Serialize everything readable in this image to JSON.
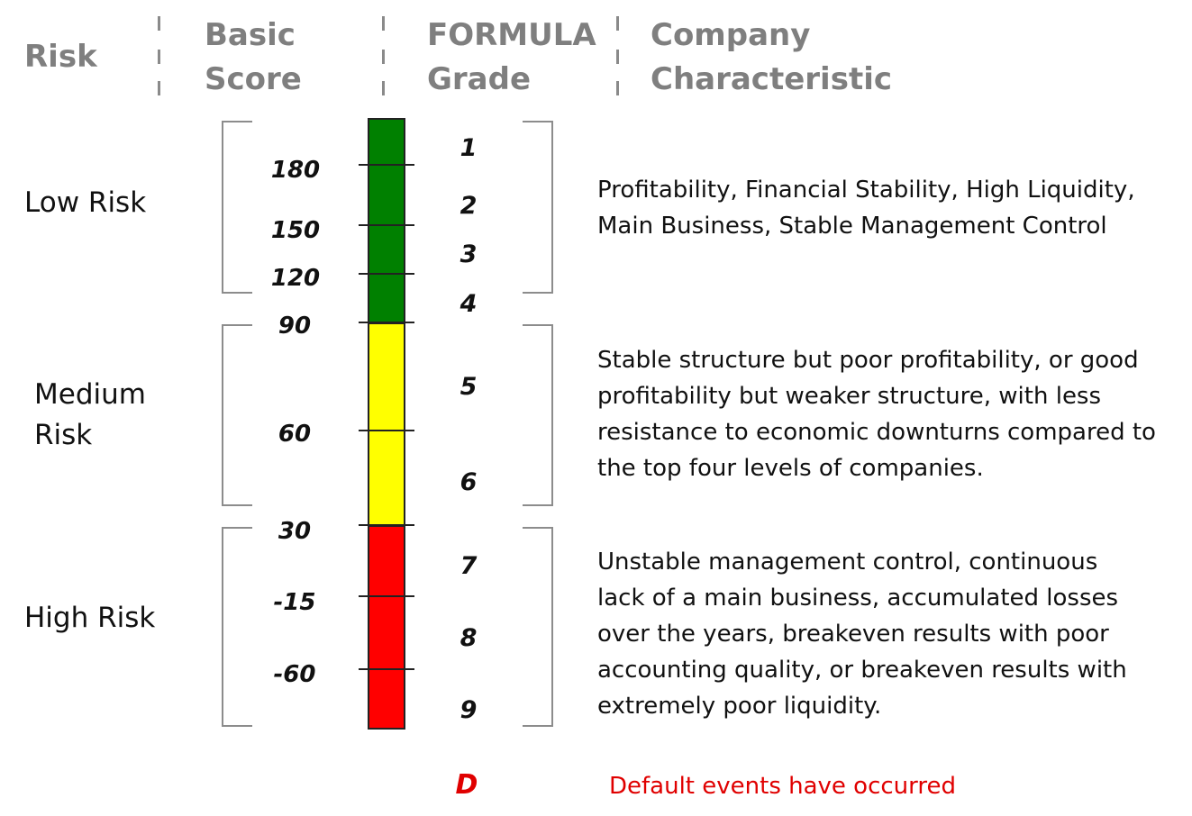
{
  "header": {
    "risk": "Risk",
    "basic_score": [
      "Basic",
      "Score"
    ],
    "formula_grade": [
      "FORMULA",
      "Grade"
    ],
    "company_characteristic": [
      "Company",
      "Characteristic"
    ]
  },
  "risk_levels": [
    {
      "label_lines": [
        "Low Risk"
      ],
      "color": "#008000",
      "description": "Profitability, Financial Stability, High Liquidity, Main Business, Stable Management Control"
    },
    {
      "label_lines": [
        "Medium",
        "Risk"
      ],
      "color": "#ffff00",
      "description": "Stable structure but poor profitability, or good profitability but weaker structure, with less resistance to economic downturns compared to the top four levels of companies."
    },
    {
      "label_lines": [
        "High Risk"
      ],
      "color": "#ff0000",
      "description": "Unstable management control, continuous lack of a main business, accumulated losses over the years, breakeven results with poor accounting quality, or breakeven results with extremely poor liquidity."
    }
  ],
  "scores": [
    "180",
    "150",
    "120",
    "90",
    "60",
    "30",
    "-15",
    "-60"
  ],
  "grades": [
    "1",
    "2",
    "3",
    "4",
    "5",
    "6",
    "7",
    "8",
    "9"
  ],
  "default": {
    "grade": "D",
    "text": "Default events have occurred",
    "color": "#e00000"
  }
}
